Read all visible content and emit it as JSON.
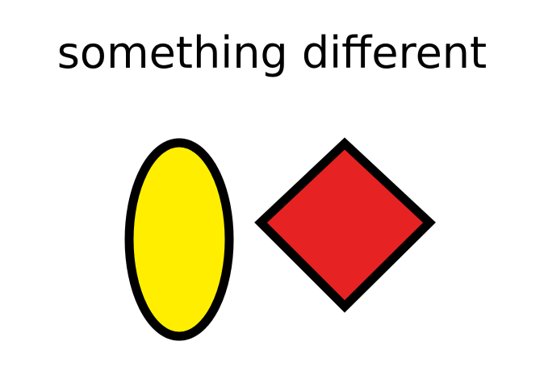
{
  "title": "something different",
  "shapes": [
    {
      "kind": "ellipse",
      "fill": "#ffee00",
      "stroke": "#000000"
    },
    {
      "kind": "diamond",
      "fill": "#e62222",
      "stroke": "#000000"
    }
  ]
}
